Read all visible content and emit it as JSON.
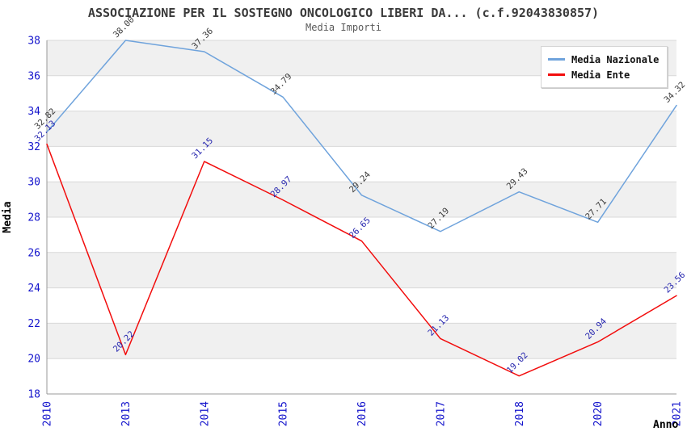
{
  "header": {
    "title": "ASSOCIAZIONE PER IL SOSTEGNO ONCOLOGICO LIBERI DA... (c.f.92043830857)",
    "subtitle": "Media Importi"
  },
  "legend": {
    "position": "top-right",
    "items": [
      {
        "label": "Media Nazionale",
        "color": "#6FA3DC"
      },
      {
        "label": "Media Ente",
        "color": "#F20D0D"
      }
    ]
  },
  "chart_data": {
    "type": "line",
    "title": "ASSOCIAZIONE PER IL SOSTEGNO ONCOLOGICO LIBERI DA... (c.f.92043830857)",
    "subtitle": "Media Importi",
    "xlabel": "Anno",
    "ylabel": "Media",
    "categories": [
      "2010",
      "2013",
      "2014",
      "2015",
      "2016",
      "2017",
      "2018",
      "2020",
      "2021"
    ],
    "series": [
      {
        "name": "Media Nazionale",
        "color": "#6FA3DC",
        "label_color": "#3A3A3A",
        "values": [
          32.82,
          38.0,
          37.36,
          34.79,
          29.24,
          27.19,
          29.43,
          27.71,
          34.32
        ]
      },
      {
        "name": "Media Ente",
        "color": "#F20D0D",
        "label_color": "#2424AE",
        "values": [
          32.13,
          20.22,
          31.15,
          28.97,
          26.65,
          21.13,
          19.02,
          20.94,
          23.56
        ]
      }
    ],
    "ylim": [
      18,
      38
    ],
    "ytick_step": 2,
    "yticks": [
      18,
      20,
      22,
      24,
      26,
      28,
      30,
      32,
      34,
      36,
      38
    ],
    "grid": true,
    "alternating_bands": true,
    "band_color": "#F0F0F0",
    "grid_color": "#D8D8D8",
    "axis_color": "#999999",
    "tick_label_color": "#1414CC",
    "axis_title_color": "#000000",
    "legend_position": "top-right",
    "data_labels_rotation_deg": -45,
    "xtick_rotation_deg": -90
  }
}
